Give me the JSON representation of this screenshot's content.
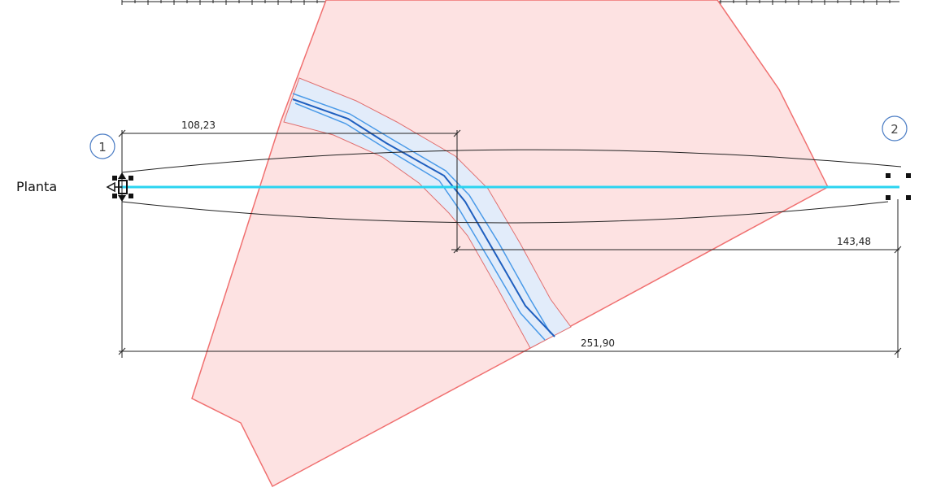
{
  "view": {
    "label": "Planta"
  },
  "gridlines": [
    {
      "id": "1",
      "label": "1"
    },
    {
      "id": "2",
      "label": "2"
    }
  ],
  "dimensions": {
    "d1": "108,23",
    "d2": "143,48",
    "d3": "251,90"
  },
  "colors": {
    "region_fill": "#fde2e2",
    "region_stroke": "#f07070",
    "band_fill": "#e2ecfa",
    "band_stroke": "#e07070",
    "road_center": "#1f5fbf",
    "road_edges": "#4a9ae8",
    "beam_axis": "#2ad4f0",
    "dimension_line": "#222222",
    "gridline_circle": "#4a7cc4"
  }
}
